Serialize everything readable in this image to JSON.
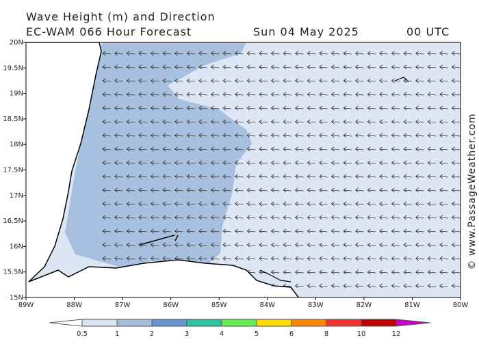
{
  "header": {
    "title": "Wave Height (m) and Direction",
    "model": "EC-WAM 066 Hour Forecast",
    "date": "Sun 04 May 2025",
    "time": "00 UTC"
  },
  "map": {
    "yticks": [
      "20N",
      "19.5N",
      "19N",
      "18.5N",
      "18N",
      "17.5N",
      "17N",
      "16.5N",
      "16N",
      "15.5N",
      "15N"
    ],
    "xticks": [
      "89W",
      "88W",
      "87W",
      "86W",
      "85W",
      "84W",
      "83W",
      "82W",
      "81W",
      "80W"
    ]
  },
  "colorbar": {
    "labels": [
      0.5,
      1,
      2,
      3,
      4,
      5,
      6,
      8,
      10,
      12
    ],
    "colors": [
      "#dde6f4",
      "#a7c0e0",
      "#6b96d4",
      "#2ec4a0",
      "#66ee55",
      "#ffdd00",
      "#ff8800",
      "#ee3333",
      "#bb0000"
    ],
    "over_color": "#cc00cc"
  },
  "copyright": "© www.PassageWeather.com"
}
